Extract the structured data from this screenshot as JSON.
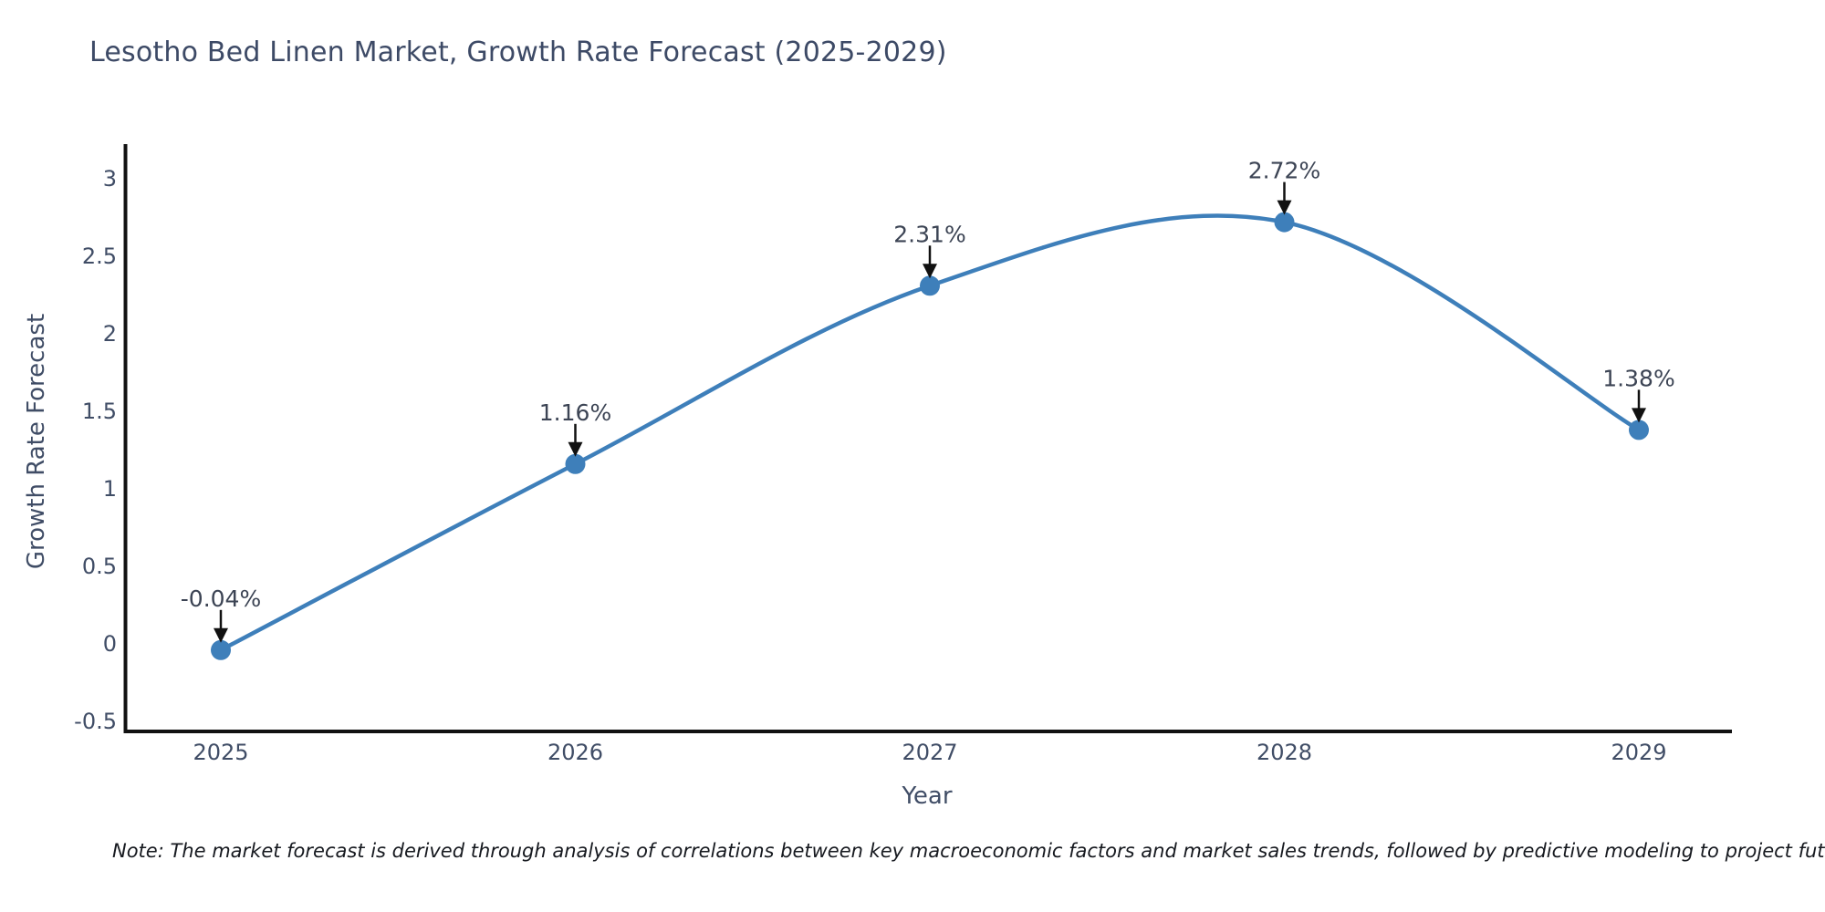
{
  "footnote": {
    "text": "Note: The market forecast is derived through analysis of correlations between key macroeconomic factors and market sales trends, followed by predictive modeling to project future sa"
  },
  "colors": {
    "background": "#ffffff",
    "line": "#3e7fba",
    "marker": "#3e7fba",
    "axis_spine": "#111111",
    "tick_label": "#404d66",
    "title": "#3d4a66",
    "annotation": "#3c4454",
    "arrow": "#111111",
    "note": "#16191f"
  },
  "chart_data": {
    "type": "line",
    "title": "Lesotho Bed Linen Market, Growth Rate Forecast (2025-2029)",
    "xlabel": "Year",
    "ylabel": "Growth Rate Forecast",
    "x": [
      2025,
      2026,
      2027,
      2028,
      2029
    ],
    "series": [
      {
        "name": "Growth Rate Forecast",
        "values": [
          -0.04,
          1.16,
          2.31,
          2.72,
          1.38
        ],
        "point_labels": [
          "-0.04%",
          "1.16%",
          "2.31%",
          "2.72%",
          "1.38%"
        ]
      }
    ],
    "line_shape": "spline",
    "markers": true,
    "annotations": "value label above each point with a downward black arrow",
    "ylim": [
      -0.5,
      3.2
    ],
    "yticks": [
      3,
      2.5,
      2,
      1.5,
      1,
      0.5,
      0,
      -0.5
    ],
    "grid": false,
    "legend": false
  }
}
